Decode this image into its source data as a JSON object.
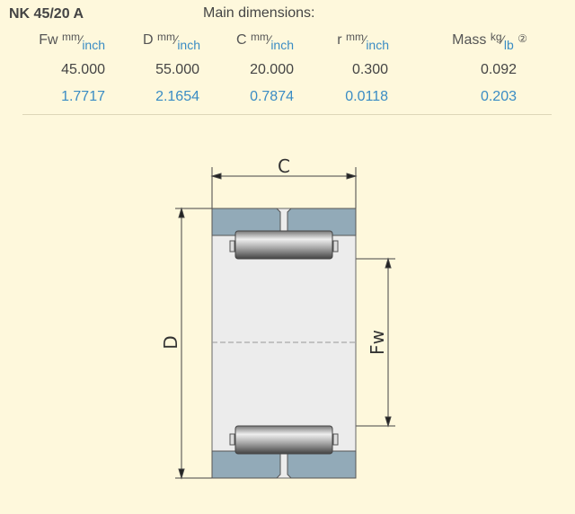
{
  "product": {
    "title": "NK 45/20 A",
    "section": "Main dimensions:"
  },
  "columns": [
    {
      "name": "Fw",
      "unit_top": "mm",
      "unit_bottom": "inch",
      "mm": "45.000",
      "inch": "1.7717"
    },
    {
      "name": "D",
      "unit_top": "mm",
      "unit_bottom": "inch",
      "mm": "55.000",
      "inch": "2.1654"
    },
    {
      "name": "C",
      "unit_top": "mm",
      "unit_bottom": "inch",
      "mm": "20.000",
      "inch": "0.7874"
    },
    {
      "name": "r",
      "unit_top": "mm",
      "unit_bottom": "inch",
      "mm": "0.300",
      "inch": "0.0118"
    },
    {
      "name": "Mass",
      "unit_top": "kg",
      "unit_bottom": "lb",
      "mm": "0.092",
      "inch": "0.203"
    }
  ],
  "mass_info_icon": "②",
  "drawing": {
    "label_c": "C",
    "label_d": "D",
    "label_fw": "Fw"
  },
  "colors": {
    "background": "#fef8dc",
    "accent": "#3a8cc4",
    "ring": "#92aab8"
  }
}
